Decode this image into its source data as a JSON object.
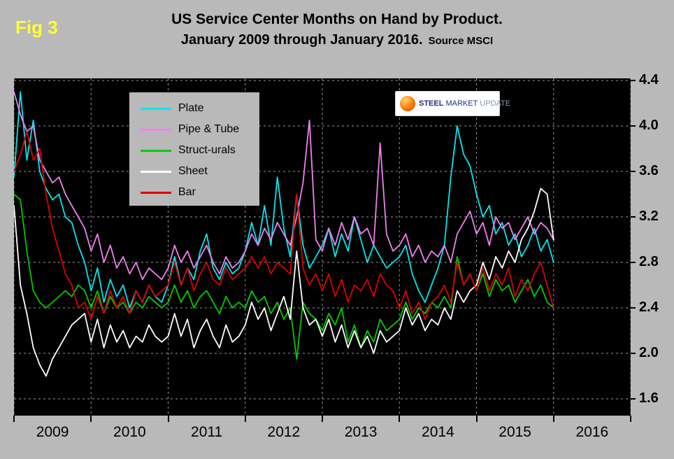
{
  "figure": {
    "fig_label": "Fig 3",
    "title_line1": "US Service Center Months on Hand by Product.",
    "title_line2": "January 2009 through January 2016.",
    "source": "Source MSCI"
  },
  "logo": {
    "word1": "STEEL",
    "word2": "MARKET",
    "word3": "UPDATE"
  },
  "colors": {
    "background": "#b9b9b9",
    "plot_background": "#000000",
    "grid": "#9a9a9a",
    "fig_label": "#ffff33"
  },
  "legend": {
    "position": "top-left",
    "items": [
      {
        "label": "Plate",
        "color": "#00e8ee"
      },
      {
        "label": "Pipe & Tube",
        "color": "#ee82ee"
      },
      {
        "label": "Struct-urals",
        "color": "#00cc00"
      },
      {
        "label": "Sheet",
        "color": "#ffffff"
      },
      {
        "label": "Bar",
        "color": "#dd0000"
      }
    ]
  },
  "y_axis": {
    "side": "right",
    "ticks": [
      4.4,
      4.0,
      3.6,
      3.2,
      2.8,
      2.4,
      2.0,
      1.6
    ]
  },
  "x_axis": {
    "years": [
      "2009",
      "2010",
      "2011",
      "2012",
      "2013",
      "2014",
      "2015",
      "2016"
    ]
  },
  "chart_data": {
    "type": "line",
    "title": "US Service Center Months on Hand by Product. January 2009 through January 2016.",
    "source": "MSCI",
    "x_start": "2009-01",
    "x_end": "2016-01",
    "x_interval": "monthly",
    "x_tick_labels": [
      "2009",
      "2010",
      "2011",
      "2012",
      "2013",
      "2014",
      "2015",
      "2016"
    ],
    "ylim": [
      1.6,
      4.4
    ],
    "y_ticks": [
      1.6,
      2.0,
      2.4,
      2.8,
      3.2,
      3.6,
      4.0,
      4.4
    ],
    "grid": true,
    "legend_position": "top-left",
    "series": [
      {
        "name": "Plate",
        "color": "#00e8ee",
        "values": [
          3.55,
          4.3,
          3.7,
          4.05,
          3.6,
          3.45,
          3.35,
          3.4,
          3.2,
          3.15,
          2.95,
          2.8,
          2.55,
          2.75,
          2.45,
          2.65,
          2.5,
          2.6,
          2.4,
          2.55,
          2.45,
          2.6,
          2.5,
          2.45,
          2.6,
          2.85,
          2.6,
          2.75,
          2.65,
          2.9,
          3.05,
          2.75,
          2.65,
          2.8,
          2.7,
          2.75,
          2.9,
          3.15,
          2.95,
          3.3,
          2.95,
          3.55,
          3.1,
          2.85,
          3.4,
          2.95,
          2.75,
          2.85,
          2.95,
          3.1,
          2.85,
          3.05,
          2.9,
          3.2,
          3.0,
          2.8,
          2.95,
          2.85,
          2.75,
          2.8,
          2.85,
          2.95,
          2.7,
          2.55,
          2.45,
          2.6,
          2.75,
          2.95,
          3.55,
          4.0,
          3.75,
          3.65,
          3.4,
          3.2,
          3.3,
          3.05,
          3.15,
          2.95,
          3.05,
          2.85,
          2.95,
          3.1,
          2.9,
          3.0,
          2.8
        ]
      },
      {
        "name": "Pipe & Tube",
        "color": "#ee82ee",
        "values": [
          4.3,
          4.1,
          3.95,
          4.0,
          3.7,
          3.6,
          3.5,
          3.55,
          3.4,
          3.3,
          3.2,
          3.1,
          2.9,
          3.05,
          2.8,
          2.95,
          2.75,
          2.85,
          2.7,
          2.8,
          2.65,
          2.75,
          2.7,
          2.65,
          2.75,
          2.95,
          2.8,
          2.9,
          2.75,
          2.85,
          2.95,
          2.8,
          2.7,
          2.85,
          2.75,
          2.8,
          2.9,
          3.05,
          2.95,
          3.1,
          3.0,
          3.15,
          3.05,
          2.95,
          3.2,
          3.5,
          4.05,
          3.0,
          2.9,
          3.1,
          2.95,
          3.15,
          3.0,
          3.2,
          3.05,
          3.1,
          2.95,
          3.85,
          3.05,
          2.9,
          2.95,
          3.05,
          2.85,
          2.95,
          2.8,
          2.9,
          2.85,
          2.95,
          2.8,
          3.05,
          3.15,
          3.25,
          3.05,
          3.15,
          2.95,
          3.2,
          3.1,
          3.15,
          3.0,
          3.1,
          3.2,
          3.05,
          3.15,
          3.1,
          3.0
        ]
      },
      {
        "name": "Struct-urals",
        "color": "#00cc00",
        "values": [
          3.4,
          3.35,
          2.9,
          2.55,
          2.45,
          2.4,
          2.45,
          2.5,
          2.55,
          2.5,
          2.6,
          2.55,
          2.4,
          2.55,
          2.35,
          2.5,
          2.4,
          2.45,
          2.35,
          2.45,
          2.4,
          2.5,
          2.45,
          2.4,
          2.45,
          2.6,
          2.45,
          2.55,
          2.4,
          2.5,
          2.55,
          2.45,
          2.35,
          2.5,
          2.4,
          2.45,
          2.4,
          2.55,
          2.45,
          2.5,
          2.35,
          2.45,
          2.3,
          2.4,
          1.95,
          2.45,
          2.35,
          2.3,
          2.2,
          2.35,
          2.25,
          2.4,
          2.1,
          2.25,
          2.05,
          2.2,
          2.1,
          2.3,
          2.2,
          2.25,
          2.3,
          2.45,
          2.3,
          2.4,
          2.35,
          2.45,
          2.4,
          2.5,
          2.4,
          2.85,
          2.6,
          2.7,
          2.55,
          2.7,
          2.5,
          2.65,
          2.55,
          2.6,
          2.45,
          2.55,
          2.65,
          2.5,
          2.6,
          2.45,
          2.4
        ]
      },
      {
        "name": "Sheet",
        "color": "#ffffff",
        "values": [
          3.3,
          2.6,
          2.35,
          2.05,
          1.9,
          1.8,
          1.95,
          2.05,
          2.15,
          2.25,
          2.3,
          2.35,
          2.1,
          2.3,
          2.05,
          2.25,
          2.1,
          2.2,
          2.05,
          2.15,
          2.1,
          2.25,
          2.15,
          2.1,
          2.15,
          2.35,
          2.15,
          2.3,
          2.05,
          2.2,
          2.3,
          2.15,
          2.05,
          2.25,
          2.1,
          2.15,
          2.25,
          2.45,
          2.3,
          2.4,
          2.2,
          2.35,
          2.5,
          2.3,
          2.9,
          2.4,
          2.25,
          2.3,
          2.15,
          2.3,
          2.1,
          2.25,
          2.05,
          2.2,
          2.05,
          2.15,
          2.0,
          2.2,
          2.1,
          2.15,
          2.2,
          2.4,
          2.25,
          2.35,
          2.2,
          2.3,
          2.25,
          2.4,
          2.3,
          2.55,
          2.45,
          2.55,
          2.6,
          2.8,
          2.65,
          2.85,
          2.75,
          2.9,
          2.8,
          3.0,
          3.1,
          3.25,
          3.45,
          3.4,
          3.0
        ]
      },
      {
        "name": "Bar",
        "color": "#dd0000",
        "values": [
          3.6,
          3.75,
          3.95,
          3.7,
          3.8,
          3.4,
          3.1,
          2.9,
          2.7,
          2.6,
          2.4,
          2.45,
          2.3,
          2.5,
          2.35,
          2.55,
          2.4,
          2.5,
          2.35,
          2.55,
          2.45,
          2.6,
          2.5,
          2.55,
          2.6,
          2.8,
          2.6,
          2.75,
          2.55,
          2.7,
          2.8,
          2.65,
          2.6,
          2.75,
          2.65,
          2.7,
          2.75,
          2.85,
          2.75,
          2.85,
          2.7,
          2.8,
          2.75,
          2.7,
          3.4,
          2.75,
          2.6,
          2.7,
          2.55,
          2.7,
          2.5,
          2.65,
          2.45,
          2.6,
          2.55,
          2.65,
          2.5,
          2.7,
          2.6,
          2.55,
          2.4,
          2.55,
          2.35,
          2.45,
          2.3,
          2.45,
          2.5,
          2.6,
          2.45,
          2.8,
          2.6,
          2.7,
          2.55,
          2.75,
          2.55,
          2.7,
          2.6,
          2.75,
          2.5,
          2.65,
          2.55,
          2.7,
          2.8,
          2.6,
          2.4
        ]
      }
    ]
  }
}
